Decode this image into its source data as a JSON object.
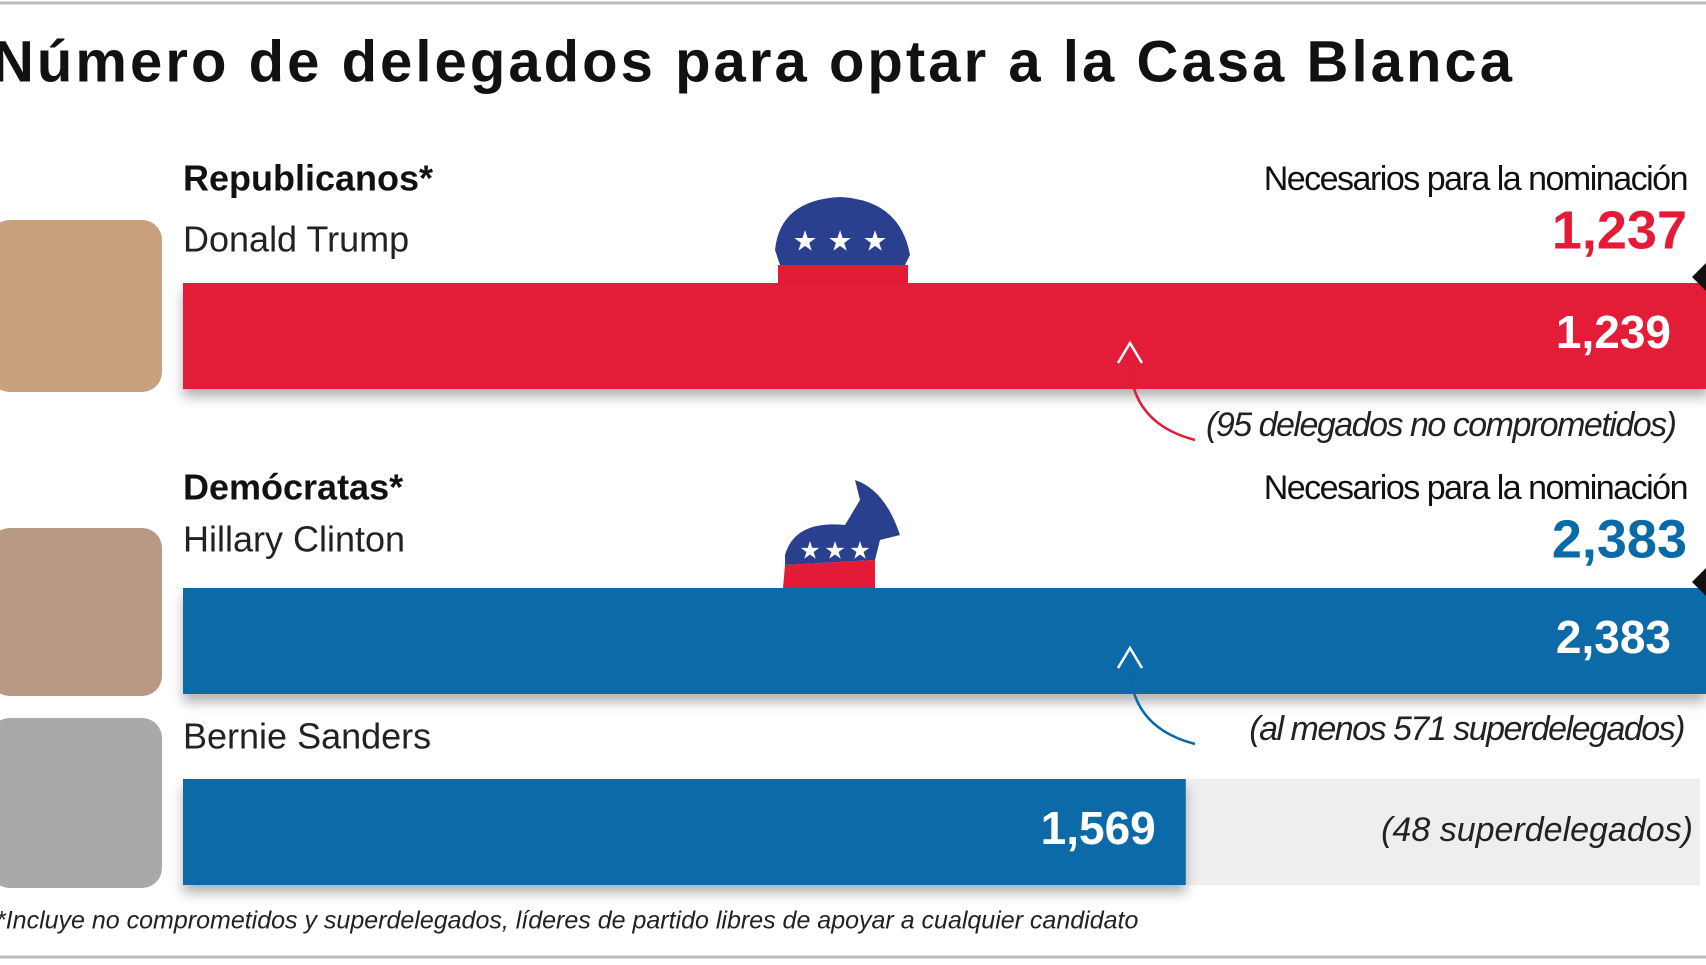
{
  "chart_data": {
    "type": "bar",
    "title": "Número de delegados para optar a la Casa Blanca",
    "footnote": "*Incluye no comprometidos y superdelegados, líderes de partido libres de apoyar a cualquier candidato",
    "groups": [
      {
        "label": "Republicanos*",
        "color": "#e31b37",
        "needed_label": "Necesarios para la nominación",
        "needed": {
          "value": 1237,
          "label": "1,237"
        },
        "candidates": [
          {
            "name": "Donald Trump",
            "value": 1239,
            "value_label": "1,239",
            "note": "(95 delegados no comprometidos)"
          }
        ]
      },
      {
        "label": "Demócratas*",
        "color": "#0a6aa8",
        "needed_label": "Necesarios para la nominación",
        "needed": {
          "value": 2383,
          "label": "2,383"
        },
        "candidates": [
          {
            "name": "Hillary Clinton",
            "value": 2383,
            "value_label": "2,383",
            "note": "(al menos 571 superdelegados)"
          },
          {
            "name": "Bernie Sanders",
            "value": 1569,
            "value_label": "1,569",
            "note": "(48 superdelegados)"
          }
        ]
      }
    ]
  }
}
